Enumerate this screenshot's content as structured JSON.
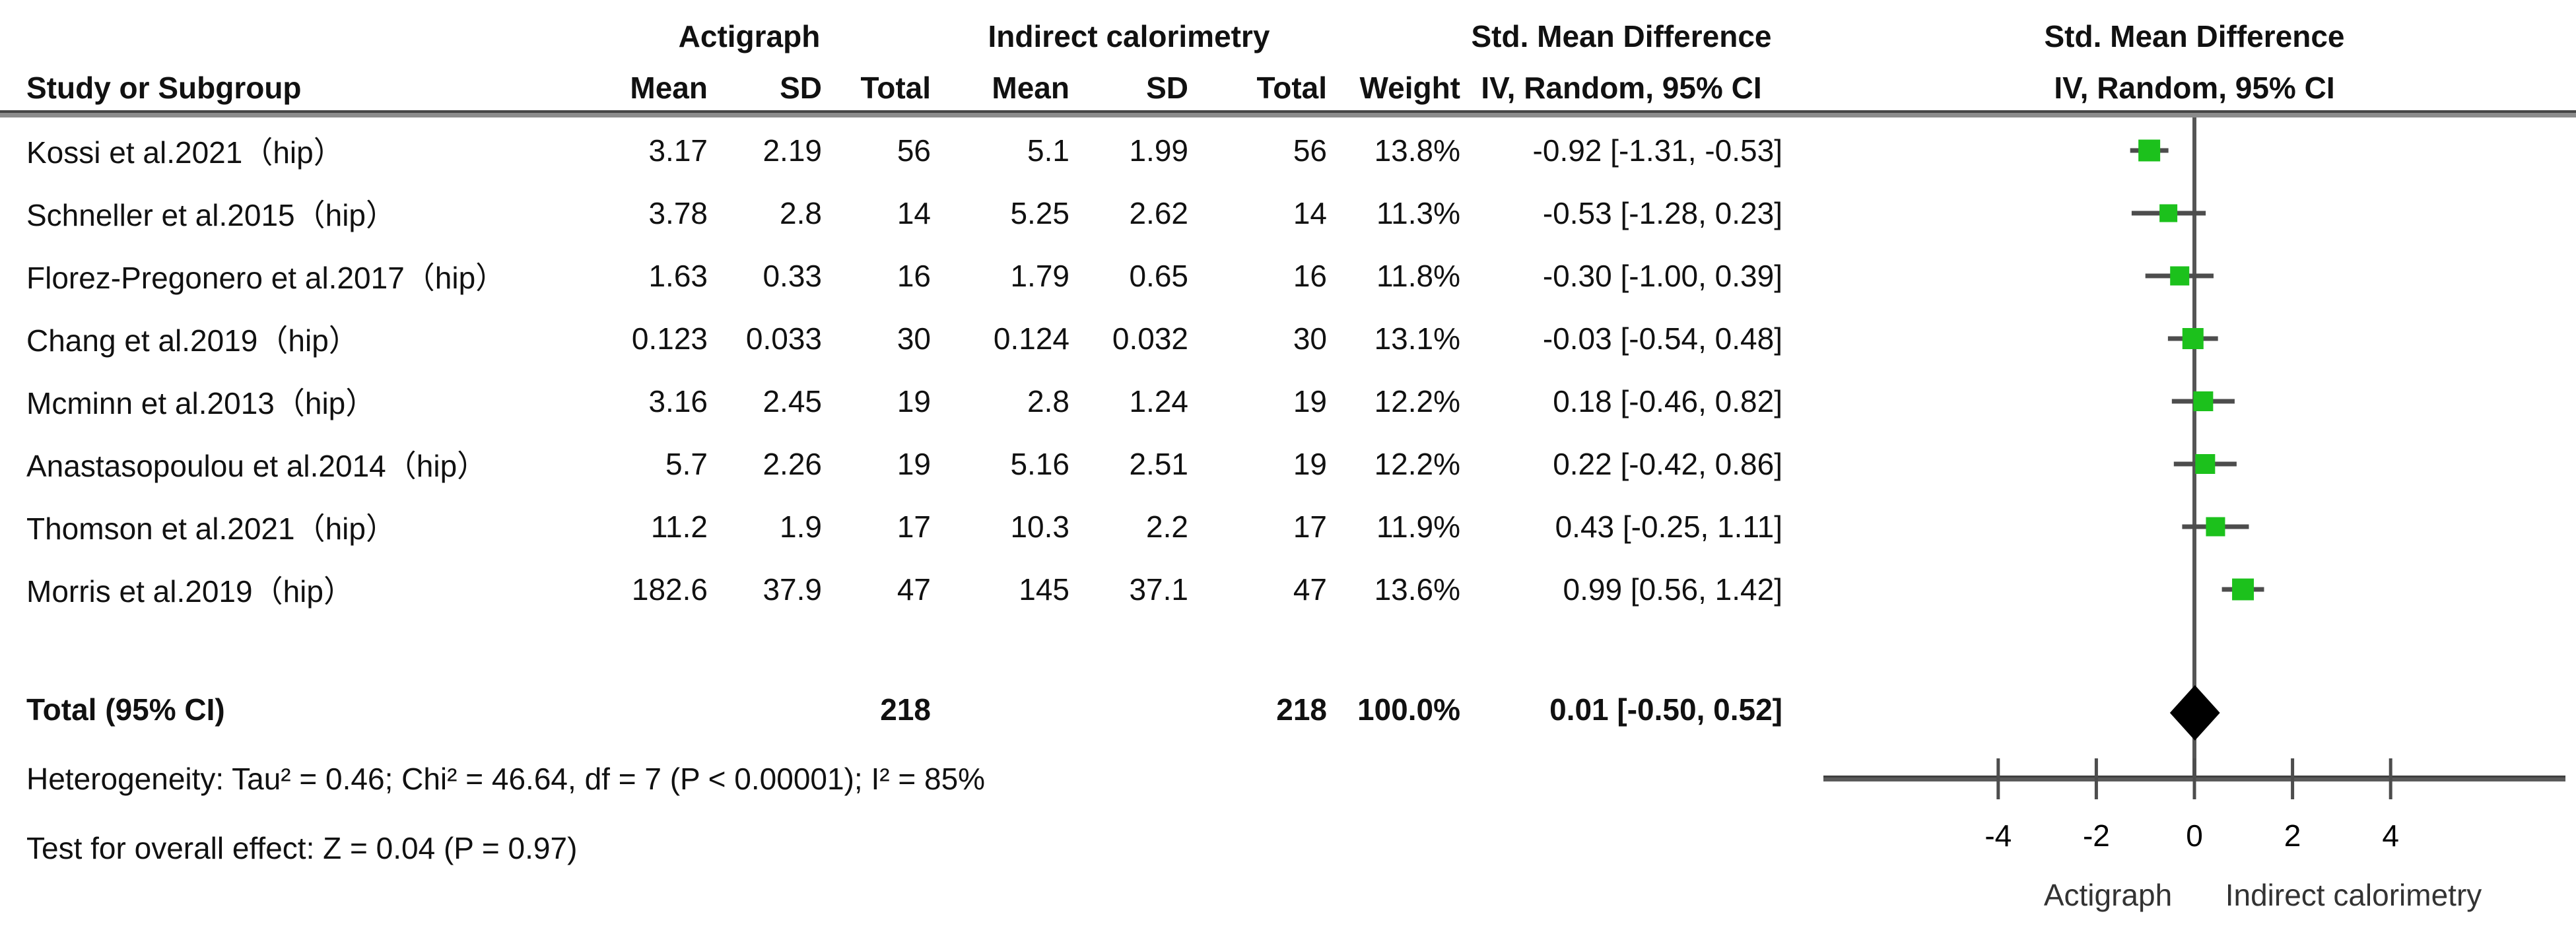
{
  "header": {
    "group1": "Actigraph",
    "group2": "Indirect calorimetry",
    "group3": "Std. Mean Difference",
    "col_study": "Study or Subgroup",
    "col_mean1": "Mean",
    "col_sd1": "SD",
    "col_total1": "Total",
    "col_mean2": "Mean",
    "col_sd2": "SD",
    "col_total2": "Total",
    "col_weight": "Weight",
    "col_ci": "IV, Random, 95% CI",
    "plot_title": "Std. Mean Difference",
    "plot_subtitle": "IV, Random, 95% CI"
  },
  "footer": {
    "heterogeneity": "Heterogeneity: Tau² = 0.46; Chi² = 46.64, df = 7 (P < 0.00001); I² = 85%",
    "overall_effect": "Test for overall effect: Z = 0.04 (P = 0.97)"
  },
  "colors": {
    "marker_green": "#1cc11c",
    "ci_line": "#4d4d4d",
    "zero_line": "#555555",
    "axis_line": "#5a5a5a",
    "tick_text": "#000000",
    "caption_text": "#333333",
    "diamond": "#000000"
  },
  "chart_data": {
    "type": "forest",
    "effect_measure": "Std. Mean Difference",
    "method": "IV, Random, 95% CI",
    "xlim": [
      -4,
      4
    ],
    "studies": [
      {
        "label": "Kossi et al.2021（hip）",
        "mean1": "3.17",
        "sd1": "2.19",
        "n1": "56",
        "mean2": "5.1",
        "sd2": "1.99",
        "n2": "56",
        "weight": "13.8%",
        "weight_value": 13.8,
        "ci_text": "-0.92 [-1.31, -0.53]",
        "effect": -0.92,
        "ci_low": -1.31,
        "ci_high": -0.53
      },
      {
        "label": "Schneller et al.2015（hip）",
        "mean1": "3.78",
        "sd1": "2.8",
        "n1": "14",
        "mean2": "5.25",
        "sd2": "2.62",
        "n2": "14",
        "weight": "11.3%",
        "weight_value": 11.3,
        "ci_text": "-0.53 [-1.28, 0.23]",
        "effect": -0.53,
        "ci_low": -1.28,
        "ci_high": 0.23
      },
      {
        "label": "Florez-Pregonero et al.2017（hip）",
        "mean1": "1.63",
        "sd1": "0.33",
        "n1": "16",
        "mean2": "1.79",
        "sd2": "0.65",
        "n2": "16",
        "weight": "11.8%",
        "weight_value": 11.8,
        "ci_text": "-0.30 [-1.00, 0.39]",
        "effect": -0.3,
        "ci_low": -1.0,
        "ci_high": 0.39
      },
      {
        "label": "Chang et al.2019（hip）",
        "mean1": "0.123",
        "sd1": "0.033",
        "n1": "30",
        "mean2": "0.124",
        "sd2": "0.032",
        "n2": "30",
        "weight": "13.1%",
        "weight_value": 13.1,
        "ci_text": "-0.03 [-0.54, 0.48]",
        "effect": -0.03,
        "ci_low": -0.54,
        "ci_high": 0.48
      },
      {
        "label": "Mcminn et al.2013（hip）",
        "mean1": "3.16",
        "sd1": "2.45",
        "n1": "19",
        "mean2": "2.8",
        "sd2": "1.24",
        "n2": "19",
        "weight": "12.2%",
        "weight_value": 12.2,
        "ci_text": "0.18 [-0.46, 0.82]",
        "effect": 0.18,
        "ci_low": -0.46,
        "ci_high": 0.82
      },
      {
        "label": "Anastasopoulou et al.2014（hip）",
        "mean1": "5.7",
        "sd1": "2.26",
        "n1": "19",
        "mean2": "5.16",
        "sd2": "2.51",
        "n2": "19",
        "weight": "12.2%",
        "weight_value": 12.2,
        "ci_text": "0.22 [-0.42, 0.86]",
        "effect": 0.22,
        "ci_low": -0.42,
        "ci_high": 0.86
      },
      {
        "label": "Thomson et al.2021（hip）",
        "mean1": "11.2",
        "sd1": "1.9",
        "n1": "17",
        "mean2": "10.3",
        "sd2": "2.2",
        "n2": "17",
        "weight": "11.9%",
        "weight_value": 11.9,
        "ci_text": "0.43 [-0.25, 1.11]",
        "effect": 0.43,
        "ci_low": -0.25,
        "ci_high": 1.11
      },
      {
        "label": "Morris et al.2019（hip）",
        "mean1": "182.6",
        "sd1": "37.9",
        "n1": "47",
        "mean2": "145",
        "sd2": "37.1",
        "n2": "47",
        "weight": "13.6%",
        "weight_value": 13.6,
        "ci_text": "0.99 [0.56, 1.42]",
        "effect": 0.99,
        "ci_low": 0.56,
        "ci_high": 1.42
      }
    ],
    "total": {
      "label": "Total (95% CI)",
      "n1": "218",
      "n2": "218",
      "weight": "100.0%",
      "ci_text": "0.01 [-0.50, 0.52]",
      "effect": 0.01,
      "ci_low": -0.5,
      "ci_high": 0.52
    },
    "axis": {
      "ticks": [
        -4,
        -2,
        0,
        2,
        4
      ],
      "left_caption": "Actigraph",
      "right_caption": "Indirect calorimetry"
    }
  }
}
